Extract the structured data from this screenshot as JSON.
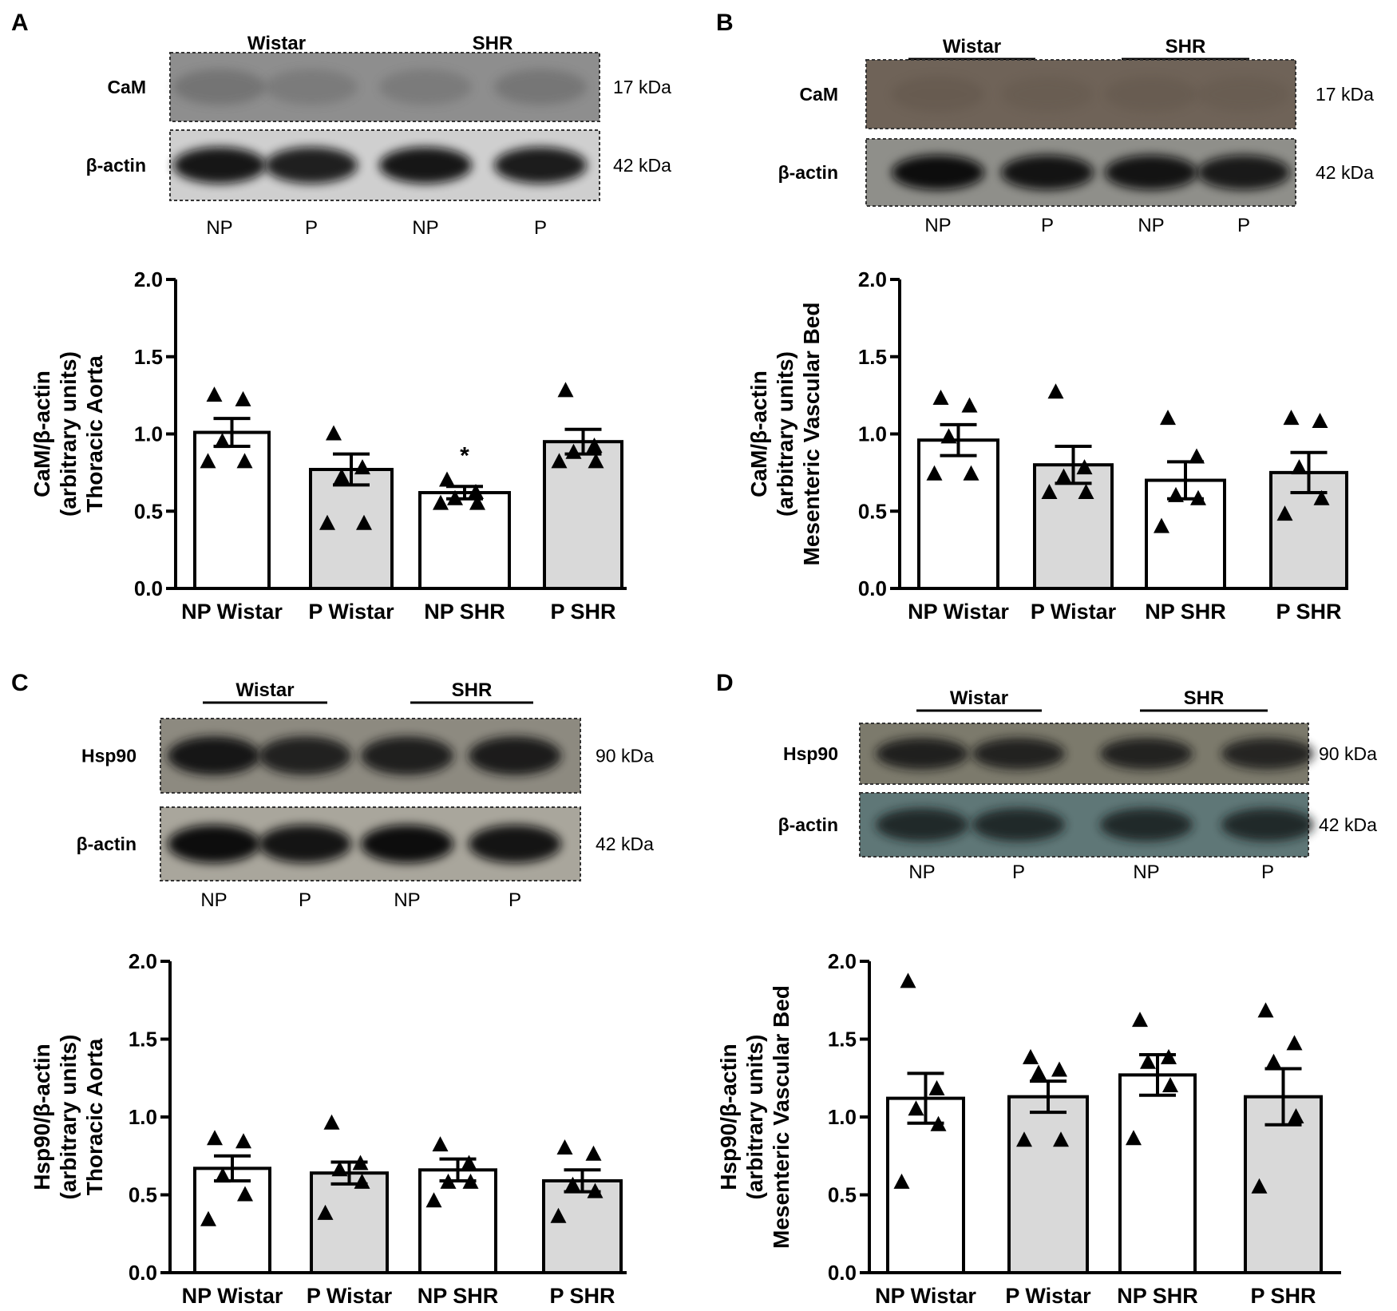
{
  "panels": [
    {
      "letter": "A",
      "blot": {
        "groups": [
          "Wistar",
          "SHR"
        ],
        "rows": [
          {
            "label": "CaM",
            "size": "17 kDa",
            "bg": "#8e8e8e",
            "band_color": "#3b3b3b",
            "band_strength": [
              0.3,
              0.22,
              0.22,
              0.28
            ]
          },
          {
            "label": "β-actin",
            "size": "42 kDa",
            "bg": "#cfcfcf",
            "band_color": "#0d0d0d",
            "band_strength": [
              0.95,
              0.9,
              0.95,
              0.92
            ]
          }
        ],
        "lanes": [
          "NP",
          "P",
          "NP",
          "P"
        ]
      },
      "chart_data": {
        "type": "bar",
        "categories": [
          "NP Wistar",
          "P Wistar",
          "NP SHR",
          "P SHR"
        ],
        "values": [
          1.01,
          0.77,
          0.62,
          0.95
        ],
        "errors": [
          0.09,
          0.1,
          0.04,
          0.08
        ],
        "bar_fills": [
          "#ffffff",
          "#d9d9d9",
          "#ffffff",
          "#d9d9d9"
        ],
        "points": [
          [
            1.25,
            1.22,
            0.95,
            0.82,
            0.82
          ],
          [
            1.0,
            0.78,
            0.72,
            0.42,
            0.42
          ],
          [
            0.7,
            0.62,
            0.58,
            0.55,
            0.55
          ],
          [
            1.28,
            0.92,
            0.88,
            0.82,
            0.82
          ]
        ],
        "annotations": [
          {
            "category": "NP SHR",
            "text": "*"
          }
        ],
        "ylabel": [
          "CaM/β-actin",
          "(arbitrary units)",
          "Thoracic Aorta"
        ],
        "ylim": [
          0,
          2.0
        ],
        "yticks": [
          "0.0",
          "0.5",
          "1.0",
          "1.5",
          "2.0"
        ],
        "legend": false,
        "grid": false
      }
    },
    {
      "letter": "B",
      "blot": {
        "groups": [
          "Wistar",
          "SHR"
        ],
        "rows": [
          {
            "label": "CaM",
            "size": "17 kDa",
            "bg": "#6f6358",
            "band_color": "#4b4036",
            "band_strength": [
              0.2,
              0.15,
              0.18,
              0.15
            ]
          },
          {
            "label": "β-actin",
            "size": "42 kDa",
            "bg": "#8f8f8a",
            "band_color": "#080808",
            "band_strength": [
              1.0,
              0.95,
              0.95,
              0.9
            ]
          }
        ],
        "lanes": [
          "NP",
          "P",
          "NP",
          "P"
        ]
      },
      "chart_data": {
        "type": "bar",
        "categories": [
          "NP Wistar",
          "P Wistar",
          "NP SHR",
          "P SHR"
        ],
        "values": [
          0.96,
          0.8,
          0.7,
          0.75
        ],
        "errors": [
          0.1,
          0.12,
          0.12,
          0.13
        ],
        "bar_fills": [
          "#ffffff",
          "#d9d9d9",
          "#ffffff",
          "#d9d9d9"
        ],
        "points": [
          [
            1.23,
            1.18,
            0.98,
            0.74,
            0.74
          ],
          [
            1.27,
            0.78,
            0.72,
            0.62,
            0.62
          ],
          [
            1.1,
            0.85,
            0.6,
            0.58,
            0.4
          ],
          [
            1.1,
            1.08,
            0.78,
            0.58,
            0.48
          ]
        ],
        "annotations": [],
        "ylabel": [
          "CaM/β-actin",
          "(arbitrary units)",
          "Mesenteric Vascular Bed"
        ],
        "ylim": [
          0,
          2.0
        ],
        "yticks": [
          "0.0",
          "0.5",
          "1.0",
          "1.5",
          "2.0"
        ],
        "legend": false,
        "grid": false
      }
    },
    {
      "letter": "C",
      "blot": {
        "groups": [
          "Wistar",
          "SHR"
        ],
        "rows": [
          {
            "label": "Hsp90",
            "size": "90 kDa",
            "bg": "#8d8a80",
            "band_color": "#121212",
            "band_strength": [
              1.0,
              0.9,
              0.92,
              0.95
            ]
          },
          {
            "label": "β-actin",
            "size": "42 kDa",
            "bg": "#a9a69c",
            "band_color": "#0b0b0b",
            "band_strength": [
              1.0,
              0.95,
              1.0,
              0.95
            ]
          }
        ],
        "lanes": [
          "NP",
          "P",
          "NP",
          "P"
        ]
      },
      "chart_data": {
        "type": "bar",
        "categories": [
          "NP Wistar",
          "P Wistar",
          "NP SHR",
          "P SHR"
        ],
        "values": [
          0.67,
          0.64,
          0.66,
          0.59
        ],
        "errors": [
          0.08,
          0.07,
          0.07,
          0.07
        ],
        "bar_fills": [
          "#ffffff",
          "#d9d9d9",
          "#ffffff",
          "#d9d9d9"
        ],
        "points": [
          [
            0.86,
            0.84,
            0.62,
            0.5,
            0.34
          ],
          [
            0.96,
            0.7,
            0.66,
            0.58,
            0.38
          ],
          [
            0.82,
            0.7,
            0.58,
            0.58,
            0.46
          ],
          [
            0.8,
            0.76,
            0.56,
            0.52,
            0.36
          ]
        ],
        "annotations": [],
        "ylabel": [
          "Hsp90/β-actin",
          "(arbitrary units)",
          "Thoracic Aorta"
        ],
        "ylim": [
          0,
          2.0
        ],
        "yticks": [
          "0.0",
          "0.5",
          "1.0",
          "1.5",
          "2.0"
        ],
        "legend": false,
        "grid": false
      }
    },
    {
      "letter": "D",
      "blot": {
        "groups": [
          "Wistar",
          "SHR"
        ],
        "rows": [
          {
            "label": "Hsp90",
            "size": "90 kDa",
            "bg": "#7c7a6c",
            "band_color": "#141414",
            "band_strength": [
              0.9,
              0.88,
              0.88,
              0.85
            ]
          },
          {
            "label": "β-actin",
            "size": "42 kDa",
            "bg": "#5f7777",
            "band_color": "#141b1b",
            "band_strength": [
              0.85,
              0.85,
              0.85,
              0.85
            ]
          }
        ],
        "lanes": [
          "NP",
          "P",
          "NP",
          "P"
        ]
      },
      "chart_data": {
        "type": "bar",
        "categories": [
          "NP Wistar",
          "P Wistar",
          "NP SHR",
          "P SHR"
        ],
        "values": [
          1.12,
          1.13,
          1.27,
          1.13
        ],
        "errors": [
          0.16,
          0.1,
          0.13,
          0.18
        ],
        "bar_fills": [
          "#ffffff",
          "#d9d9d9",
          "#ffffff",
          "#d9d9d9"
        ],
        "points": [
          [
            1.87,
            1.18,
            1.05,
            0.95,
            0.58
          ],
          [
            1.38,
            1.3,
            1.28,
            0.85,
            0.85
          ],
          [
            1.62,
            1.38,
            1.35,
            1.2,
            0.86
          ],
          [
            1.68,
            1.47,
            1.35,
            1.0,
            0.55
          ]
        ],
        "annotations": [],
        "ylabel": [
          "Hsp90/β-actin",
          "(arbitrary units)",
          "Mesenteric Vascular Bed"
        ],
        "ylim": [
          0,
          2.0
        ],
        "yticks": [
          "0.0",
          "0.5",
          "1.0",
          "1.5",
          "2.0"
        ],
        "legend": false,
        "grid": false
      }
    }
  ]
}
